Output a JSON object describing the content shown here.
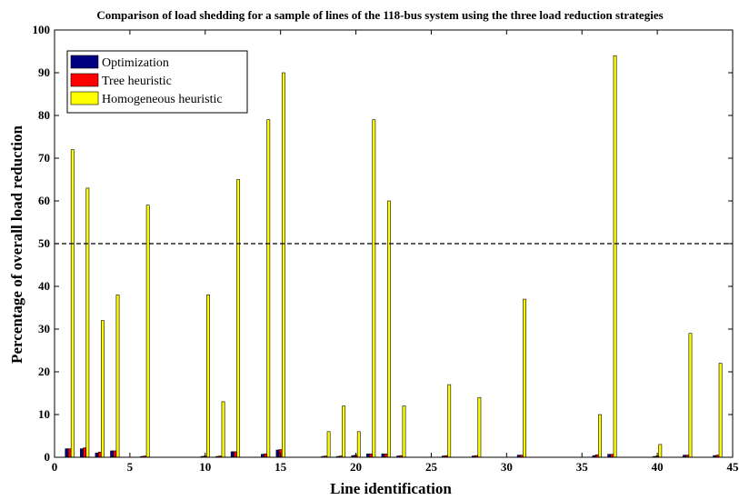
{
  "chart_data": {
    "type": "bar",
    "title": "Comparison of load shedding for a sample of lines of the 118-bus system using the three load reduction strategies",
    "xlabel": "Line identification",
    "ylabel": "Percentage of overall load reduction",
    "xlim": [
      0,
      45
    ],
    "ylim": [
      0,
      100
    ],
    "xticks": [
      0,
      5,
      10,
      15,
      20,
      25,
      30,
      35,
      40,
      45
    ],
    "yticks": [
      0,
      10,
      20,
      30,
      40,
      50,
      60,
      70,
      80,
      90,
      100
    ],
    "reference_line": {
      "y": 50,
      "style": "dashed"
    },
    "legend_position": "top-left",
    "x": [
      1,
      2,
      3,
      4,
      6,
      10,
      11,
      12,
      14,
      15,
      18,
      19,
      20,
      21,
      22,
      23,
      26,
      28,
      31,
      36,
      37,
      40,
      42,
      44
    ],
    "series": [
      {
        "name": "Optimization",
        "color": "#000080",
        "values": [
          2,
          2,
          1,
          1.5,
          0.2,
          0.2,
          0.2,
          1.3,
          0.7,
          1.7,
          0.2,
          0.2,
          0.4,
          0.8,
          0.8,
          0.3,
          0.3,
          0.3,
          0.5,
          0.4,
          0.7,
          0.2,
          0.5,
          0.4
        ]
      },
      {
        "name": "Tree heuristic",
        "color": "#ff0000",
        "values": [
          2,
          2.2,
          1.2,
          1.5,
          0.3,
          0.3,
          0.3,
          1.3,
          0.8,
          1.8,
          0.3,
          0.3,
          0.5,
          0.8,
          0.8,
          0.4,
          0.4,
          0.4,
          0.5,
          0.6,
          0.7,
          0.3,
          0.5,
          0.5
        ]
      },
      {
        "name": "Homogeneous heuristic",
        "color": "#ffff00",
        "values": [
          72,
          63,
          32,
          38,
          59,
          38,
          13,
          65,
          79,
          90,
          6,
          12,
          6,
          79,
          60,
          12,
          17,
          14,
          37,
          10,
          94,
          3,
          29,
          22
        ]
      }
    ]
  }
}
